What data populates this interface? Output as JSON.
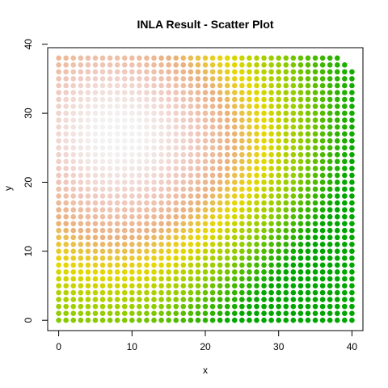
{
  "chart_data": {
    "type": "scatter",
    "title": "INLA Result  - Scatter Plot",
    "xlabel": "x",
    "ylabel": "y",
    "xlim": [
      -1.5,
      41.5
    ],
    "ylim": [
      -1.5,
      39.5
    ],
    "xticks": [
      0,
      10,
      20,
      30,
      40
    ],
    "yticks": [
      0,
      10,
      20,
      30,
      40
    ],
    "grid": false,
    "legend": "none",
    "points": {
      "x_range": [
        0,
        40
      ],
      "y_range": [
        0,
        38
      ],
      "step": 1,
      "missing": [
        {
          "x": 39,
          "y": 38
        },
        {
          "x": 40,
          "y": 37
        },
        {
          "x": 40,
          "y": 38
        }
      ]
    },
    "color_scale": {
      "stops": [
        "#f2f2f2",
        "#f0c9c0",
        "#ebb07f",
        "#e6d800",
        "#8fcc00",
        "#00a600"
      ]
    }
  }
}
